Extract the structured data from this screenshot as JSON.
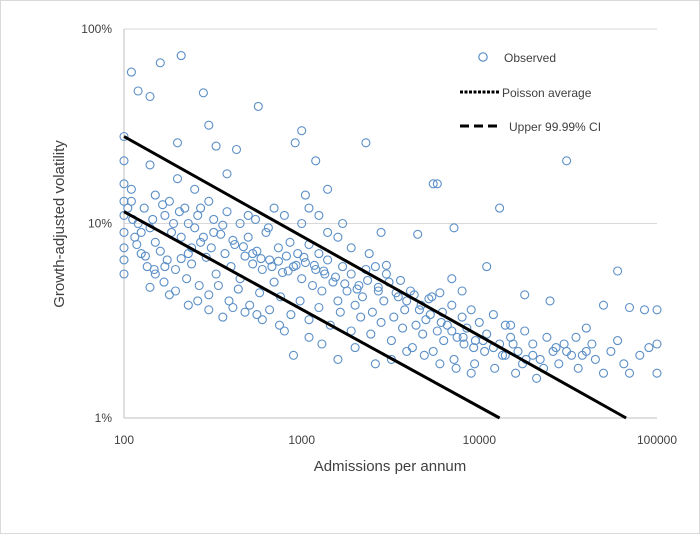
{
  "chart_data": {
    "type": "scatter",
    "xlabel": "Admissions per annum",
    "ylabel": "Growth-adjusted volatility",
    "xscale": "log",
    "yscale": "log",
    "xlim": [
      100,
      100000
    ],
    "ylim": [
      0.01,
      1
    ],
    "x_ticks": [
      {
        "value": 100,
        "label": "100"
      },
      {
        "value": 1000,
        "label": "1000"
      },
      {
        "value": 10000,
        "label": "10000"
      },
      {
        "value": 100000,
        "label": "100000"
      }
    ],
    "y_ticks": [
      {
        "value": 0.01,
        "label": "1%"
      },
      {
        "value": 0.1,
        "label": "10%"
      },
      {
        "value": 1,
        "label": "100%"
      }
    ],
    "grid": "horizontal",
    "legend_position": "top-right",
    "legend": [
      {
        "label": "Observed",
        "style": "marker"
      },
      {
        "label": "Poisson average",
        "style": "dotted"
      },
      {
        "label": "Upper 99.99% CI",
        "style": "dashed"
      }
    ],
    "colors": {
      "observed": "#5b8fc7",
      "lines": "#000000",
      "grid": "#d9d9d9",
      "text": "#404040"
    },
    "series": [
      {
        "name": "Observed",
        "type": "scatter",
        "points": [
          [
            110,
            0.6
          ],
          [
            120,
            0.48
          ],
          [
            140,
            0.45
          ],
          [
            160,
            0.67
          ],
          [
            210,
            0.73
          ],
          [
            280,
            0.47
          ],
          [
            570,
            0.4
          ],
          [
            300,
            0.32
          ],
          [
            1000,
            0.3
          ],
          [
            920,
            0.26
          ],
          [
            2300,
            0.26
          ],
          [
            200,
            0.26
          ],
          [
            330,
            0.25
          ],
          [
            430,
            0.24
          ],
          [
            1200,
            0.21
          ],
          [
            31000,
            0.21
          ],
          [
            380,
            0.18
          ],
          [
            140,
            0.2
          ],
          [
            100,
            0.28
          ],
          [
            100,
            0.21
          ],
          [
            5500,
            0.16
          ],
          [
            5800,
            0.16
          ],
          [
            1400,
            0.15
          ],
          [
            1050,
            0.14
          ],
          [
            13000,
            0.12
          ],
          [
            700,
            0.12
          ],
          [
            200,
            0.17
          ],
          [
            250,
            0.15
          ],
          [
            300,
            0.13
          ],
          [
            500,
            0.11
          ],
          [
            150,
            0.14
          ],
          [
            180,
            0.13
          ],
          [
            220,
            0.12
          ],
          [
            260,
            0.11
          ],
          [
            110,
            0.13
          ],
          [
            130,
            0.12
          ],
          [
            170,
            0.11
          ],
          [
            190,
            0.1
          ],
          [
            120,
            0.1
          ],
          [
            140,
            0.095
          ],
          [
            100,
            0.16
          ],
          [
            100,
            0.13
          ],
          [
            100,
            0.11
          ],
          [
            100,
            0.09
          ],
          [
            100,
            0.075
          ],
          [
            100,
            0.065
          ],
          [
            100,
            0.055
          ],
          [
            110,
            0.15
          ],
          [
            115,
            0.085
          ],
          [
            125,
            0.07
          ],
          [
            135,
            0.06
          ],
          [
            150,
            0.08
          ],
          [
            160,
            0.072
          ],
          [
            175,
            0.065
          ],
          [
            185,
            0.09
          ],
          [
            195,
            0.058
          ],
          [
            210,
            0.085
          ],
          [
            230,
            0.07
          ],
          [
            240,
            0.062
          ],
          [
            250,
            0.095
          ],
          [
            270,
            0.08
          ],
          [
            290,
            0.067
          ],
          [
            310,
            0.075
          ],
          [
            330,
            0.055
          ],
          [
            350,
            0.088
          ],
          [
            370,
            0.07
          ],
          [
            400,
            0.06
          ],
          [
            420,
            0.078
          ],
          [
            450,
            0.052
          ],
          [
            480,
            0.068
          ],
          [
            500,
            0.085
          ],
          [
            530,
            0.062
          ],
          [
            560,
            0.072
          ],
          [
            600,
            0.058
          ],
          [
            630,
            0.09
          ],
          [
            660,
            0.065
          ],
          [
            700,
            0.05
          ],
          [
            740,
            0.075
          ],
          [
            780,
            0.056
          ],
          [
            820,
            0.068
          ],
          [
            860,
            0.08
          ],
          [
            900,
            0.06
          ],
          [
            950,
            0.07
          ],
          [
            1000,
            0.052
          ],
          [
            1050,
            0.063
          ],
          [
            1100,
            0.078
          ],
          [
            1150,
            0.048
          ],
          [
            1200,
            0.058
          ],
          [
            1250,
            0.07
          ],
          [
            1300,
            0.045
          ],
          [
            1350,
            0.055
          ],
          [
            1400,
            0.065
          ],
          [
            1500,
            0.05
          ],
          [
            1600,
            0.04
          ],
          [
            1700,
            0.06
          ],
          [
            1800,
            0.045
          ],
          [
            1900,
            0.055
          ],
          [
            2000,
            0.038
          ],
          [
            2100,
            0.048
          ],
          [
            2200,
            0.042
          ],
          [
            2300,
            0.058
          ],
          [
            2500,
            0.035
          ],
          [
            2700,
            0.045
          ],
          [
            2900,
            0.04
          ],
          [
            3100,
            0.05
          ],
          [
            3300,
            0.033
          ],
          [
            3500,
            0.042
          ],
          [
            3800,
            0.036
          ],
          [
            4100,
            0.045
          ],
          [
            4400,
            0.03
          ],
          [
            4700,
            0.038
          ],
          [
            5000,
            0.032
          ],
          [
            5400,
            0.042
          ],
          [
            5800,
            0.028
          ],
          [
            6200,
            0.035
          ],
          [
            6600,
            0.03
          ],
          [
            7000,
            0.038
          ],
          [
            7500,
            0.026
          ],
          [
            8000,
            0.033
          ],
          [
            8500,
            0.029
          ],
          [
            9000,
            0.036
          ],
          [
            9500,
            0.025
          ],
          [
            10000,
            0.031
          ],
          [
            11000,
            0.027
          ],
          [
            12000,
            0.034
          ],
          [
            13000,
            0.024
          ],
          [
            14000,
            0.03
          ],
          [
            15000,
            0.026
          ],
          [
            16500,
            0.022
          ],
          [
            18000,
            0.028
          ],
          [
            20000,
            0.024
          ],
          [
            22000,
            0.02
          ],
          [
            24000,
            0.026
          ],
          [
            26000,
            0.022
          ],
          [
            28000,
            0.019
          ],
          [
            30000,
            0.024
          ],
          [
            33000,
            0.021
          ],
          [
            36000,
            0.018
          ],
          [
            40000,
            0.022
          ],
          [
            45000,
            0.02
          ],
          [
            50000,
            0.017
          ],
          [
            55000,
            0.022
          ],
          [
            60000,
            0.025
          ],
          [
            65000,
            0.019
          ],
          [
            70000,
            0.017
          ],
          [
            80000,
            0.021
          ],
          [
            90000,
            0.023
          ],
          [
            100000,
            0.017
          ],
          [
            100000,
            0.036
          ],
          [
            100000,
            0.024
          ],
          [
            60000,
            0.057
          ],
          [
            85000,
            0.036
          ],
          [
            70000,
            0.037
          ],
          [
            50000,
            0.038
          ],
          [
            40000,
            0.029
          ],
          [
            25000,
            0.04
          ],
          [
            18000,
            0.043
          ],
          [
            15000,
            0.03
          ],
          [
            11000,
            0.06
          ],
          [
            8000,
            0.045
          ],
          [
            7000,
            0.052
          ],
          [
            6000,
            0.044
          ],
          [
            5200,
            0.041
          ],
          [
            4300,
            0.043
          ],
          [
            3600,
            0.051
          ],
          [
            3000,
            0.055
          ],
          [
            2600,
            0.06
          ],
          [
            2400,
            0.07
          ],
          [
            1900,
            0.075
          ],
          [
            1600,
            0.085
          ],
          [
            1400,
            0.09
          ],
          [
            1250,
            0.11
          ],
          [
            1100,
            0.12
          ],
          [
            1700,
            0.1
          ],
          [
            2800,
            0.09
          ],
          [
            4500,
            0.088
          ],
          [
            7200,
            0.095
          ],
          [
            3000,
            0.061
          ],
          [
            1000,
            0.1
          ],
          [
            800,
            0.11
          ],
          [
            650,
            0.095
          ],
          [
            550,
            0.105
          ],
          [
            450,
            0.1
          ],
          [
            380,
            0.115
          ],
          [
            320,
            0.105
          ],
          [
            270,
            0.12
          ],
          [
            230,
            0.1
          ],
          [
            205,
            0.115
          ],
          [
            165,
            0.125
          ],
          [
            145,
            0.105
          ],
          [
            125,
            0.09
          ],
          [
            112,
            0.105
          ],
          [
            105,
            0.12
          ],
          [
            118,
            0.078
          ],
          [
            132,
            0.068
          ],
          [
            148,
            0.058
          ],
          [
            168,
            0.05
          ],
          [
            195,
            0.045
          ],
          [
            225,
            0.052
          ],
          [
            265,
            0.048
          ],
          [
            300,
            0.043
          ],
          [
            340,
            0.048
          ],
          [
            390,
            0.04
          ],
          [
            440,
            0.046
          ],
          [
            510,
            0.038
          ],
          [
            580,
            0.044
          ],
          [
            660,
            0.036
          ],
          [
            760,
            0.042
          ],
          [
            870,
            0.034
          ],
          [
            980,
            0.04
          ],
          [
            1100,
            0.032
          ],
          [
            1250,
            0.037
          ],
          [
            1450,
            0.03
          ],
          [
            1650,
            0.035
          ],
          [
            1900,
            0.028
          ],
          [
            2150,
            0.033
          ],
          [
            2450,
            0.027
          ],
          [
            2800,
            0.031
          ],
          [
            3200,
            0.025
          ],
          [
            3700,
            0.029
          ],
          [
            4200,
            0.023
          ],
          [
            4800,
            0.027
          ],
          [
            5500,
            0.022
          ],
          [
            6300,
            0.025
          ],
          [
            7200,
            0.02
          ],
          [
            8200,
            0.024
          ],
          [
            9400,
            0.019
          ],
          [
            10700,
            0.022
          ],
          [
            12200,
            0.018
          ],
          [
            14000,
            0.021
          ],
          [
            16000,
            0.017
          ],
          [
            18300,
            0.02
          ],
          [
            21000,
            0.016
          ],
          [
            9000,
            0.017
          ],
          [
            7400,
            0.018
          ],
          [
            6000,
            0.019
          ],
          [
            4900,
            0.021
          ],
          [
            3900,
            0.022
          ],
          [
            3200,
            0.02
          ],
          [
            2600,
            0.019
          ],
          [
            2000,
            0.023
          ],
          [
            1600,
            0.02
          ],
          [
            1300,
            0.024
          ],
          [
            1100,
            0.026
          ],
          [
            900,
            0.021
          ],
          [
            800,
            0.028
          ],
          [
            750,
            0.03
          ],
          [
            600,
            0.032
          ],
          [
            560,
            0.034
          ],
          [
            480,
            0.035
          ],
          [
            410,
            0.037
          ],
          [
            360,
            0.033
          ],
          [
            300,
            0.036
          ],
          [
            260,
            0.04
          ],
          [
            230,
            0.038
          ],
          [
            180,
            0.043
          ],
          [
            140,
            0.047
          ],
          [
            150,
            0.055
          ],
          [
            170,
            0.06
          ],
          [
            210,
            0.066
          ],
          [
            240,
            0.075
          ],
          [
            280,
            0.085
          ],
          [
            320,
            0.09
          ],
          [
            360,
            0.098
          ],
          [
            410,
            0.082
          ],
          [
            470,
            0.076
          ],
          [
            530,
            0.07
          ],
          [
            590,
            0.066
          ],
          [
            680,
            0.06
          ],
          [
            740,
            0.064
          ],
          [
            840,
            0.057
          ],
          [
            930,
            0.061
          ],
          [
            1030,
            0.067
          ],
          [
            1180,
            0.061
          ],
          [
            1330,
            0.057
          ],
          [
            1550,
            0.053
          ],
          [
            1750,
            0.049
          ],
          [
            2050,
            0.046
          ],
          [
            2350,
            0.051
          ],
          [
            2700,
            0.047
          ],
          [
            3400,
            0.044
          ],
          [
            3900,
            0.04
          ],
          [
            4600,
            0.036
          ],
          [
            5300,
            0.034
          ],
          [
            6100,
            0.031
          ],
          [
            7000,
            0.028
          ],
          [
            8100,
            0.026
          ],
          [
            9300,
            0.023
          ],
          [
            10500,
            0.025
          ],
          [
            12000,
            0.023
          ],
          [
            13500,
            0.021
          ],
          [
            15500,
            0.024
          ],
          [
            17500,
            0.019
          ],
          [
            20000,
            0.021
          ],
          [
            23000,
            0.018
          ],
          [
            27000,
            0.023
          ],
          [
            31000,
            0.022
          ],
          [
            35000,
            0.026
          ],
          [
            38000,
            0.021
          ],
          [
            43000,
            0.024
          ]
        ]
      },
      {
        "name": "Poisson average",
        "type": "line",
        "points": [
          [
            100,
            0.115
          ],
          [
            13000,
            0.01
          ]
        ]
      },
      {
        "name": "Upper 99.99% CI",
        "type": "line",
        "points": [
          [
            100,
            0.28
          ],
          [
            67000,
            0.01
          ]
        ]
      }
    ]
  }
}
